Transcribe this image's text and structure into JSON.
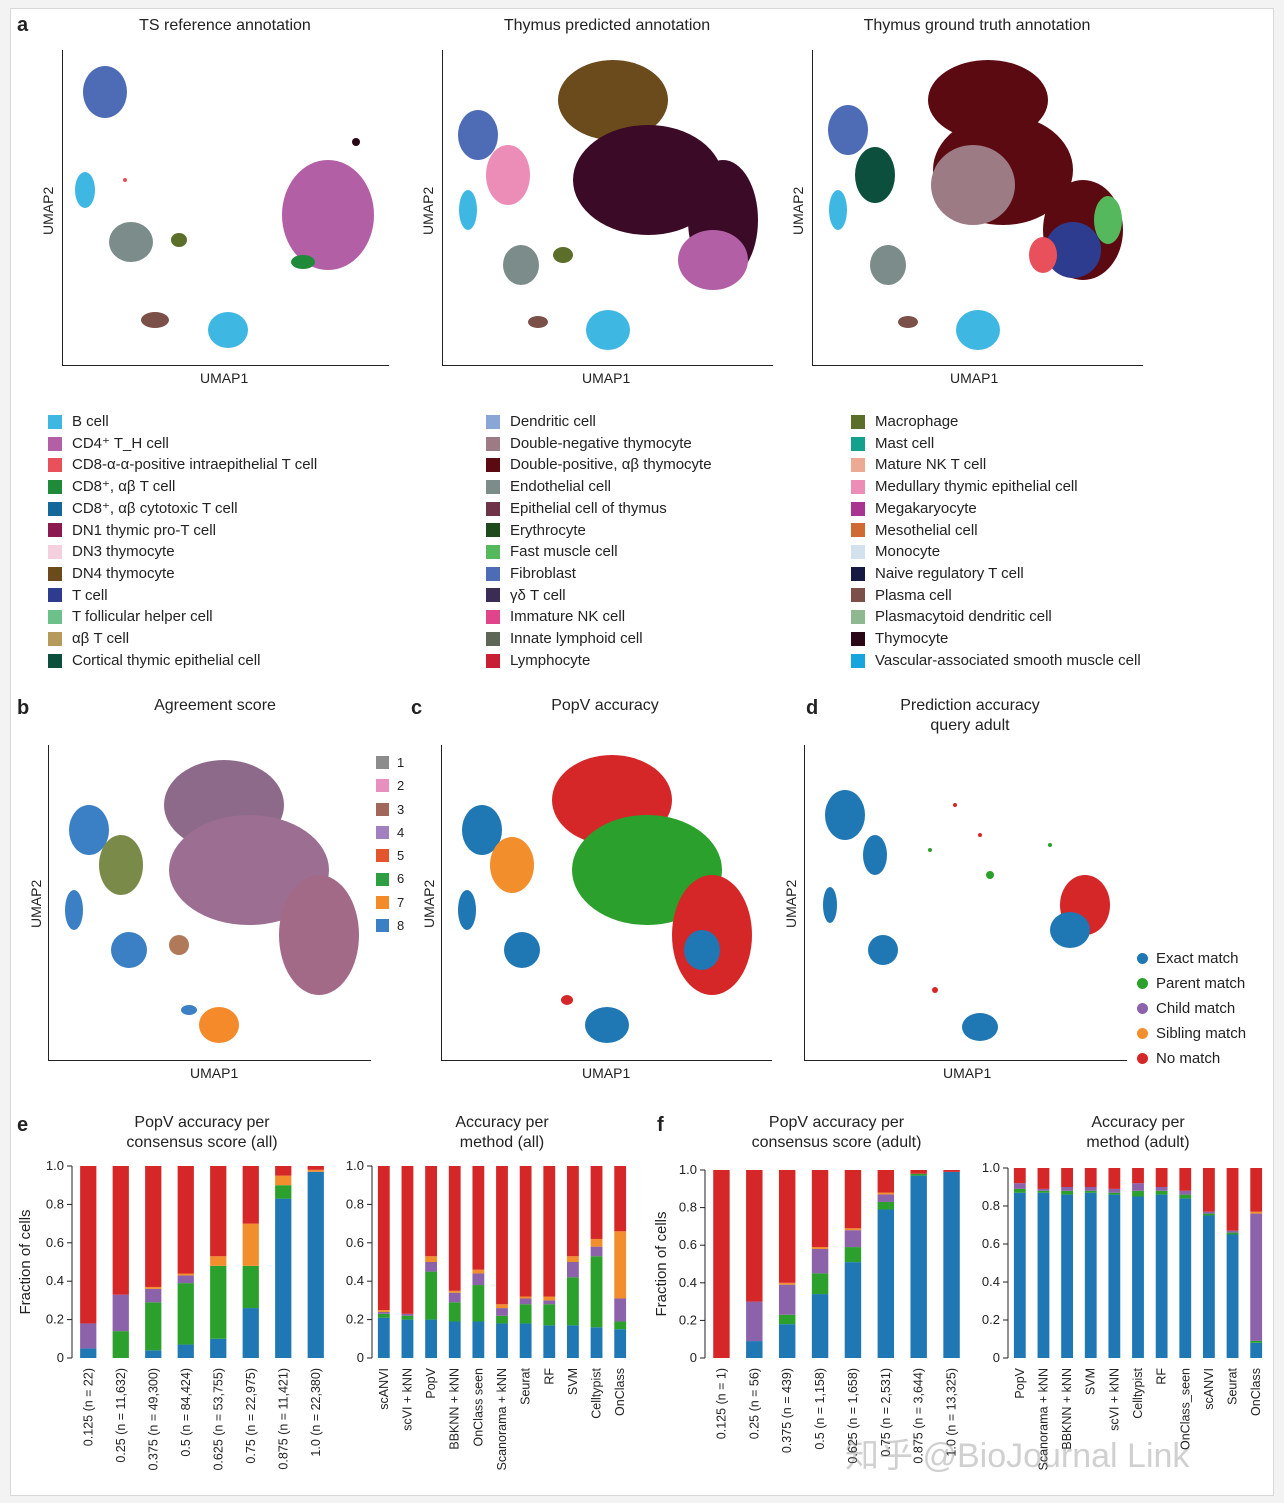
{
  "panels": {
    "a": {
      "letter": "a",
      "titles": [
        "TS reference annotation",
        "Thymus predicted annotation",
        "Thymus ground truth annotation"
      ],
      "xlabel": "UMAP1",
      "ylabel": "UMAP2"
    },
    "b": {
      "letter": "b",
      "title": "Agreement score",
      "xlabel": "UMAP1",
      "ylabel": "UMAP2"
    },
    "c": {
      "letter": "c",
      "title": "PopV accuracy",
      "xlabel": "UMAP1",
      "ylabel": "UMAP2"
    },
    "d": {
      "letter": "d",
      "title_line1": "Prediction accuracy",
      "title_line2": "query adult",
      "xlabel": "UMAP1",
      "ylabel": "UMAP2"
    },
    "e": {
      "letter": "e"
    },
    "f": {
      "letter": "f"
    }
  },
  "legend_a": {
    "col1": [
      {
        "label": "B cell",
        "color": "#3fb7e3"
      },
      {
        "label": "CD4⁺ T_H cell",
        "color": "#b25fa6"
      },
      {
        "label": "CD8-α-α-positive intraepithelial T cell",
        "color": "#e8505b"
      },
      {
        "label": "CD8⁺, αβ T cell",
        "color": "#1f8a3a"
      },
      {
        "label": "CD8⁺, αβ cytotoxic T cell",
        "color": "#14679a"
      },
      {
        "label": "DN1 thymic pro-T cell",
        "color": "#8b1a4f"
      },
      {
        "label": "DN3 thymocyte",
        "color": "#f4cfdd"
      },
      {
        "label": "DN4 thymocyte",
        "color": "#6b4a1b"
      },
      {
        "label": "T cell",
        "color": "#2d3c8f"
      },
      {
        "label": "T follicular helper cell",
        "color": "#6cc08a"
      },
      {
        "label": "αβ T cell",
        "color": "#b59a5c"
      },
      {
        "label": "Cortical thymic epithelial cell",
        "color": "#0c4f3c"
      }
    ],
    "col2": [
      {
        "label": "Dendritic cell",
        "color": "#8aa6d6"
      },
      {
        "label": "Double-negative thymocyte",
        "color": "#9c7b85"
      },
      {
        "label": "Double-positive, αβ thymocyte",
        "color": "#5c0a12"
      },
      {
        "label": "Endothelial cell",
        "color": "#7c8c8a"
      },
      {
        "label": "Epithelial cell of thymus",
        "color": "#6e3348"
      },
      {
        "label": "Erythrocyte",
        "color": "#1e4a1c"
      },
      {
        "label": "Fast muscle cell",
        "color": "#55b85c"
      },
      {
        "label": "Fibroblast",
        "color": "#4e6cb6"
      },
      {
        "label": "γδ T cell",
        "color": "#3a2c55"
      },
      {
        "label": "Immature NK cell",
        "color": "#e0448a"
      },
      {
        "label": "Innate lymphoid cell",
        "color": "#5e6757"
      },
      {
        "label": "Lymphocyte",
        "color": "#c81f35"
      }
    ],
    "col3": [
      {
        "label": "Macrophage",
        "color": "#5b6e2a"
      },
      {
        "label": "Mast cell",
        "color": "#13a08c"
      },
      {
        "label": "Mature NK T cell",
        "color": "#ecaa94"
      },
      {
        "label": "Medullary thymic epithelial cell",
        "color": "#ec8db8"
      },
      {
        "label": "Megakaryocyte",
        "color": "#a8358f"
      },
      {
        "label": "Mesothelial cell",
        "color": "#cf6a33"
      },
      {
        "label": "Monocyte",
        "color": "#d3e1ef"
      },
      {
        "label": "Naive regulatory T cell",
        "color": "#161a40"
      },
      {
        "label": "Plasma cell",
        "color": "#7a5048"
      },
      {
        "label": "Plasmacytoid dendritic cell",
        "color": "#8fb891"
      },
      {
        "label": "Thymocyte",
        "color": "#2a0716"
      },
      {
        "label": "Vascular-associated smooth muscle cell",
        "color": "#18a4dc"
      }
    ]
  },
  "legend_b": [
    {
      "label": "1",
      "color": "#8c8c8c"
    },
    {
      "label": "2",
      "color": "#e98fbd"
    },
    {
      "label": "3",
      "color": "#a0675a"
    },
    {
      "label": "4",
      "color": "#a27fbf"
    },
    {
      "label": "5",
      "color": "#e4552e"
    },
    {
      "label": "6",
      "color": "#2e9e43"
    },
    {
      "label": "7",
      "color": "#f58a2b"
    },
    {
      "label": "8",
      "color": "#3b7fc4"
    }
  ],
  "legend_d": [
    {
      "label": "Exact match",
      "color": "#1f77b4"
    },
    {
      "label": "Parent match",
      "color": "#2ca02c"
    },
    {
      "label": "Child match",
      "color": "#8c62aa"
    },
    {
      "label": "Sibling match",
      "color": "#f28e2b"
    },
    {
      "label": "No match",
      "color": "#d62728"
    }
  ],
  "chart_data": [
    {
      "type": "bar",
      "stacked": true,
      "title": "PopV accuracy per consensus score (all)",
      "ylabel": "Fraction of cells",
      "ylim": [
        0,
        1.0
      ],
      "yticks": [
        "0",
        "0.2",
        "0.4",
        "0.6",
        "0.8",
        "1.0"
      ],
      "categories": [
        "0.125 (n = 22)",
        "0.25 (n = 11,632)",
        "0.375 (n = 49,300)",
        "0.5 (n = 84,424)",
        "0.625 (n = 53,755)",
        "0.75 (n = 22,975)",
        "0.875 (n = 11,421)",
        "1.0 (n = 22,380)"
      ],
      "series": [
        {
          "name": "Exact match",
          "color": "#1f77b4",
          "values": [
            0.05,
            0.0,
            0.04,
            0.07,
            0.1,
            0.26,
            0.83,
            0.97
          ]
        },
        {
          "name": "Parent match",
          "color": "#2ca02c",
          "values": [
            0.0,
            0.14,
            0.25,
            0.32,
            0.38,
            0.22,
            0.07,
            0.0
          ]
        },
        {
          "name": "Child match",
          "color": "#8c62aa",
          "values": [
            0.13,
            0.19,
            0.07,
            0.04,
            0.0,
            0.0,
            0.0,
            0.0
          ]
        },
        {
          "name": "Sibling match",
          "color": "#f28e2b",
          "values": [
            0.0,
            0.0,
            0.01,
            0.01,
            0.05,
            0.22,
            0.05,
            0.01
          ]
        },
        {
          "name": "No match",
          "color": "#d62728",
          "values": [
            0.82,
            0.67,
            0.63,
            0.56,
            0.47,
            0.3,
            0.05,
            0.02
          ]
        }
      ]
    },
    {
      "type": "bar",
      "stacked": true,
      "title": "Accuracy per method (all)",
      "ylim": [
        0,
        1.0
      ],
      "yticks": [
        "0",
        "0.2",
        "0.4",
        "0.6",
        "0.8",
        "1.0"
      ],
      "categories": [
        "scANVI",
        "scVI + kNN",
        "PopV",
        "BBKNN + kNN",
        "OnClass seen",
        "Scanorama + kNN",
        "Seurat",
        "RF",
        "SVM",
        "Celltypist",
        "OnClass"
      ],
      "series": [
        {
          "name": "Exact match",
          "color": "#1f77b4",
          "values": [
            0.21,
            0.2,
            0.2,
            0.19,
            0.19,
            0.18,
            0.18,
            0.17,
            0.17,
            0.16,
            0.15
          ]
        },
        {
          "name": "Parent match",
          "color": "#2ca02c",
          "values": [
            0.02,
            0.02,
            0.25,
            0.1,
            0.19,
            0.04,
            0.1,
            0.11,
            0.25,
            0.37,
            0.04
          ]
        },
        {
          "name": "Child match",
          "color": "#8c62aa",
          "values": [
            0.01,
            0.01,
            0.05,
            0.05,
            0.06,
            0.04,
            0.03,
            0.02,
            0.08,
            0.05,
            0.12
          ]
        },
        {
          "name": "Sibling match",
          "color": "#f28e2b",
          "values": [
            0.01,
            0.0,
            0.03,
            0.01,
            0.02,
            0.02,
            0.01,
            0.02,
            0.03,
            0.04,
            0.35
          ]
        },
        {
          "name": "No match",
          "color": "#d62728",
          "values": [
            0.75,
            0.77,
            0.47,
            0.65,
            0.54,
            0.72,
            0.68,
            0.68,
            0.47,
            0.38,
            0.34
          ]
        }
      ]
    },
    {
      "type": "bar",
      "stacked": true,
      "title": "PopV accuracy per consensus score (adult)",
      "ylabel": "Fraction of cells",
      "ylim": [
        0,
        1.0
      ],
      "yticks": [
        "0",
        "0.2",
        "0.4",
        "0.6",
        "0.8",
        "1.0"
      ],
      "categories": [
        "0.125 (n = 1)",
        "0.25 (n = 56)",
        "0.375 (n = 439)",
        "0.5 (n = 1,158)",
        "0.625 (n = 1,658)",
        "0.75 (n = 2,531)",
        "0.875 (n = 3,644)",
        "1.0 (n = 13,325)"
      ],
      "series": [
        {
          "name": "Exact match",
          "color": "#1f77b4",
          "values": [
            0.0,
            0.09,
            0.18,
            0.34,
            0.51,
            0.79,
            0.97,
            0.99
          ]
        },
        {
          "name": "Parent match",
          "color": "#2ca02c",
          "values": [
            0.0,
            0.0,
            0.05,
            0.11,
            0.08,
            0.04,
            0.01,
            0.0
          ]
        },
        {
          "name": "Child match",
          "color": "#8c62aa",
          "values": [
            0.0,
            0.21,
            0.16,
            0.13,
            0.09,
            0.04,
            0.0,
            0.0
          ]
        },
        {
          "name": "Sibling match",
          "color": "#f28e2b",
          "values": [
            0.0,
            0.0,
            0.01,
            0.01,
            0.01,
            0.01,
            0.0,
            0.0
          ]
        },
        {
          "name": "No match",
          "color": "#d62728",
          "values": [
            1.0,
            0.7,
            0.6,
            0.41,
            0.31,
            0.12,
            0.02,
            0.01
          ]
        }
      ]
    },
    {
      "type": "bar",
      "stacked": true,
      "title": "Accuracy per method (adult)",
      "ylim": [
        0,
        1.0
      ],
      "yticks": [
        "0",
        "0.2",
        "0.4",
        "0.6",
        "0.8",
        "1.0"
      ],
      "categories": [
        "PopV",
        "Scanorama + kNN",
        "BBKNN + kNN",
        "SVM",
        "scVI + kNN",
        "Celltypist",
        "RF",
        "OnClass_seen",
        "scANVI",
        "Seurat",
        "OnClass"
      ],
      "series": [
        {
          "name": "Exact match",
          "color": "#1f77b4",
          "values": [
            0.87,
            0.87,
            0.86,
            0.87,
            0.86,
            0.85,
            0.86,
            0.84,
            0.75,
            0.65,
            0.08
          ]
        },
        {
          "name": "Parent match",
          "color": "#2ca02c",
          "values": [
            0.02,
            0.01,
            0.02,
            0.01,
            0.01,
            0.03,
            0.02,
            0.02,
            0.01,
            0.01,
            0.01
          ]
        },
        {
          "name": "Child match",
          "color": "#8c62aa",
          "values": [
            0.03,
            0.01,
            0.02,
            0.02,
            0.02,
            0.04,
            0.02,
            0.02,
            0.01,
            0.01,
            0.67
          ]
        },
        {
          "name": "Sibling match",
          "color": "#f28e2b",
          "values": [
            0.0,
            0.0,
            0.0,
            0.0,
            0.0,
            0.0,
            0.0,
            0.0,
            0.0,
            0.0,
            0.01
          ]
        },
        {
          "name": "No match",
          "color": "#d62728",
          "values": [
            0.08,
            0.11,
            0.1,
            0.1,
            0.11,
            0.08,
            0.1,
            0.12,
            0.23,
            0.33,
            0.23
          ]
        }
      ]
    }
  ],
  "watermark": "知乎 @BioJournal Link"
}
